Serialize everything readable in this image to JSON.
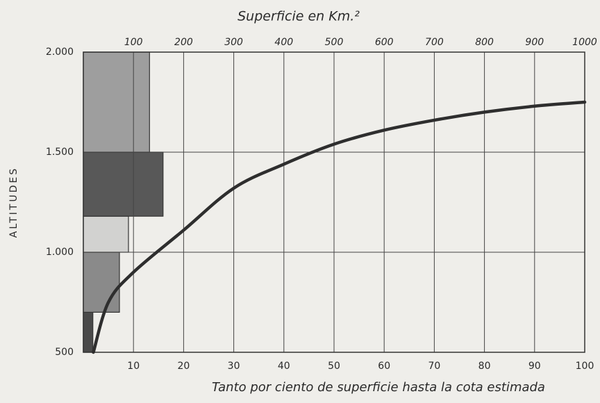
{
  "chart_data": {
    "type": "hypsographic",
    "title": "Superficie en Km.²",
    "xlabel": "Tanto por ciento de superficie hasta la cota estimada",
    "ylabel": "ALTITUDES",
    "xlim": [
      0,
      100
    ],
    "xticks": [
      10,
      20,
      30,
      40,
      50,
      60,
      70,
      80,
      90,
      100
    ],
    "x2lim": [
      0,
      1000
    ],
    "x2ticks": [
      100,
      200,
      300,
      400,
      500,
      600,
      700,
      800,
      900,
      1000
    ],
    "ylim": [
      500,
      2000
    ],
    "yticks": [
      500,
      {
        "value": 1000,
        "label": "1.000"
      },
      {
        "value": 1500,
        "label": "1.500"
      },
      {
        "value": 2000,
        "label": "2.000"
      }
    ],
    "grid": true,
    "bars": {
      "bins": [
        500,
        700,
        1000,
        1180,
        1500,
        2000
      ],
      "values": [
        19,
        72,
        90,
        159,
        132
      ],
      "colors": [
        "#4a4a4a",
        "#8a8a8a",
        "#d2d2d0",
        "#585858",
        "#9e9e9e"
      ]
    },
    "series": [
      {
        "color": "#2e2e2e",
        "x": [
          2,
          5,
          10,
          20,
          30,
          40,
          50,
          60,
          70,
          80,
          90,
          100
        ],
        "values": [
          500,
          750,
          900,
          1110,
          1320,
          1440,
          1540,
          1610,
          1660,
          1700,
          1730,
          1750
        ]
      }
    ]
  }
}
